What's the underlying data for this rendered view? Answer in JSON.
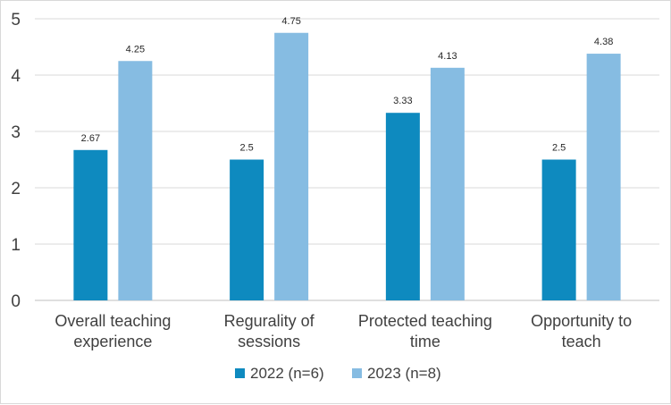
{
  "chart_data": {
    "type": "bar",
    "title": "",
    "xlabel": "",
    "ylabel": "",
    "ylim": [
      0,
      5
    ],
    "yticks": [
      "0",
      "1",
      "2",
      "3",
      "4",
      "5"
    ],
    "grid": true,
    "legend_position": "bottom",
    "categories": [
      [
        "Overall teaching",
        "experience"
      ],
      [
        "Regurality of",
        "sessions"
      ],
      [
        "Protected teaching",
        "time"
      ],
      [
        "Opportunity to",
        "teach"
      ]
    ],
    "series": [
      {
        "name": "2022 (n=6)",
        "color": "#0e8abf",
        "values": [
          2.67,
          2.5,
          3.33,
          2.5
        ],
        "labels": [
          "2.67",
          "2.5",
          "3.33",
          "2.5"
        ]
      },
      {
        "name": "2023 (n=8)",
        "color": "#86bce2",
        "values": [
          4.25,
          4.75,
          4.13,
          4.38
        ],
        "labels": [
          "4.25",
          "4.75",
          "4.13",
          "4.38"
        ]
      }
    ]
  }
}
